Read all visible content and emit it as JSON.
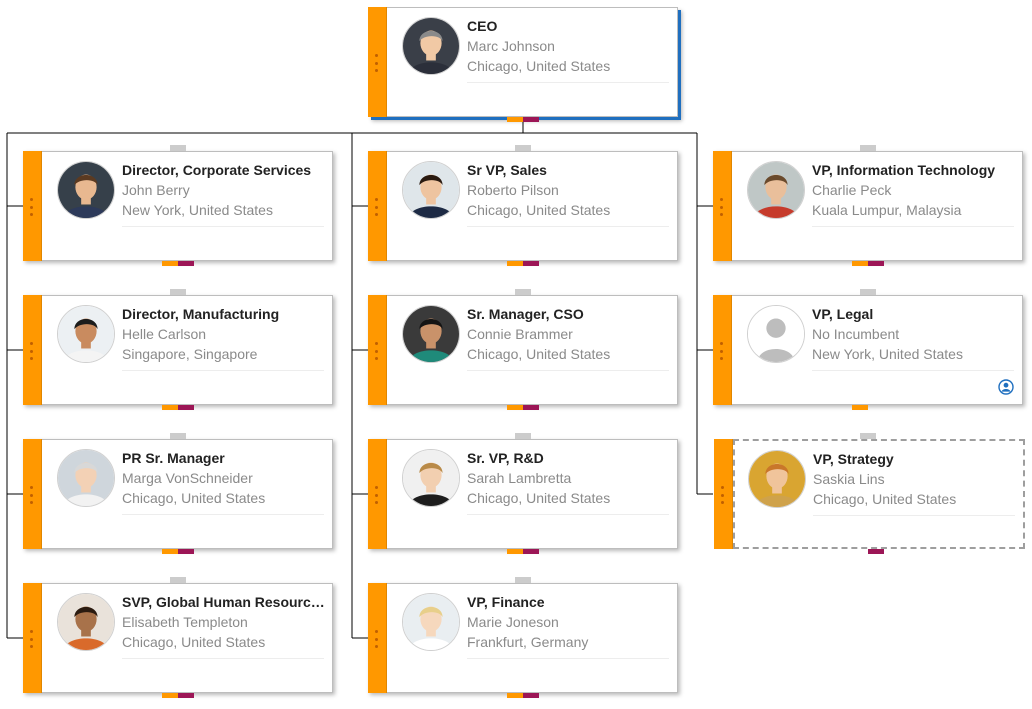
{
  "colors": {
    "stripe": "#ff9800",
    "connector_orange": "#ff9800",
    "connector_purple": "#9c1656",
    "line": "#000000",
    "card_border": "#bdbdbd",
    "title_text": "#222222",
    "meta_text": "#8a8a8a",
    "selection_outline": "#9e9e9e",
    "focus_shadow": "#1f6fbf"
  },
  "nodes": [
    {
      "title": "CEO",
      "name": "Marc Johnson",
      "location": "Chicago, United States",
      "photo_icon": "person-photo",
      "state": "focused"
    },
    {
      "title": "Director, Corporate Services",
      "name": "John Berry",
      "location": "New York, United States",
      "photo_icon": "person-photo"
    },
    {
      "title": "Director, Manufacturing",
      "name": "Helle Carlson",
      "location": "Singapore, Singapore",
      "photo_icon": "person-photo"
    },
    {
      "title": "PR Sr. Manager",
      "name": "Marga VonSchneider",
      "location": "Chicago, United States",
      "photo_icon": "person-photo"
    },
    {
      "title": "SVP, Global Human Resources",
      "name": "Elisabeth Templeton",
      "location": "Chicago, United States",
      "photo_icon": "person-photo"
    },
    {
      "title": "Sr VP, Sales",
      "name": "Roberto Pilson",
      "location": "Chicago, United States",
      "photo_icon": "person-photo"
    },
    {
      "title": "Sr. Manager, CSO",
      "name": "Connie Brammer",
      "location": "Chicago, United States",
      "photo_icon": "person-photo"
    },
    {
      "title": "Sr. VP, R&D",
      "name": "Sarah Lambretta",
      "location": "Chicago, United States",
      "photo_icon": "person-photo"
    },
    {
      "title": "VP, Finance",
      "name": "Marie Joneson",
      "location": "Frankfurt, Germany",
      "photo_icon": "person-photo"
    },
    {
      "title": "VP, Information Technology",
      "name": "Charlie Peck",
      "location": "Kuala Lumpur, Malaysia",
      "photo_icon": "person-photo"
    },
    {
      "title": "VP, Legal",
      "name": "No Incumbent",
      "location": "New York, United States",
      "photo_icon": "empty-person-placeholder",
      "vacancy_icon": "vacancy-icon"
    },
    {
      "title": "VP, Strategy",
      "name": "Saskia Lins",
      "location": "Chicago, United States",
      "photo_icon": "person-photo",
      "state": "selected"
    }
  ]
}
